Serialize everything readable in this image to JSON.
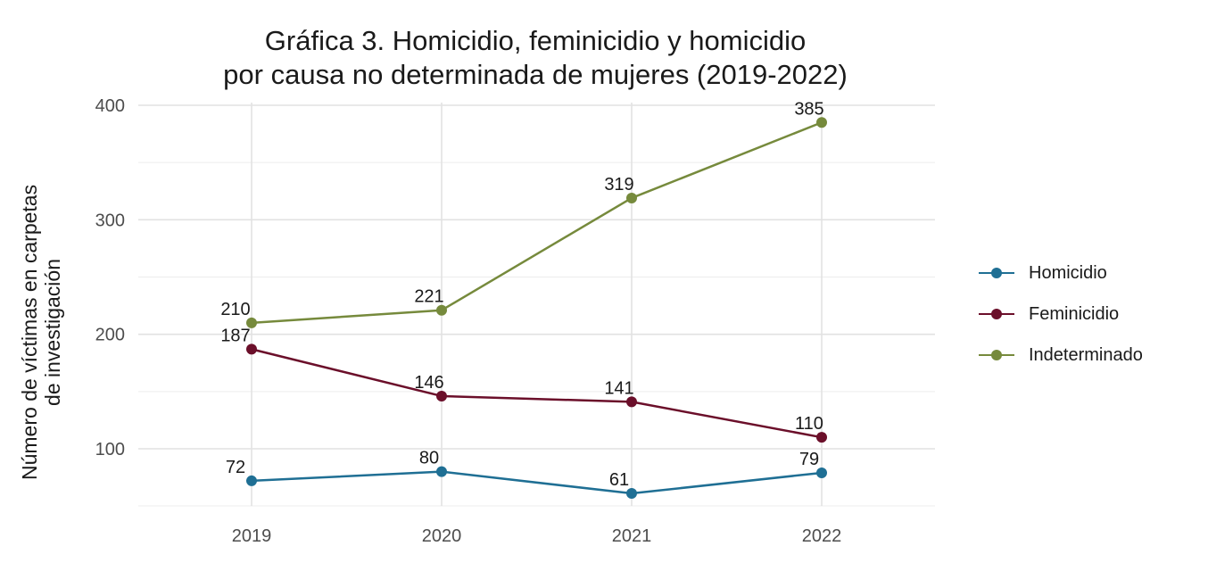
{
  "chart_data": {
    "type": "line",
    "title_line1": "Gráfica 3. Homicidio, feminicidio y homicidio",
    "title_line2": "por causa no determinada de mujeres (2019-2022)",
    "xlabel": "",
    "ylabel_line1": "Número de víctimas en carpetas",
    "ylabel_line2": "de investigación",
    "categories": [
      "2019",
      "2020",
      "2021",
      "2022"
    ],
    "yticks": [
      100,
      200,
      300,
      400
    ],
    "ylim": [
      50,
      400
    ],
    "series": [
      {
        "name": "Homicidio",
        "color": "#1f6f94",
        "values": [
          72,
          80,
          61,
          79
        ]
      },
      {
        "name": "Feminicidio",
        "color": "#6b0f2a",
        "values": [
          187,
          146,
          141,
          110
        ]
      },
      {
        "name": "Indeterminado",
        "color": "#768a3c",
        "values": [
          210,
          221,
          319,
          385
        ]
      }
    ]
  }
}
